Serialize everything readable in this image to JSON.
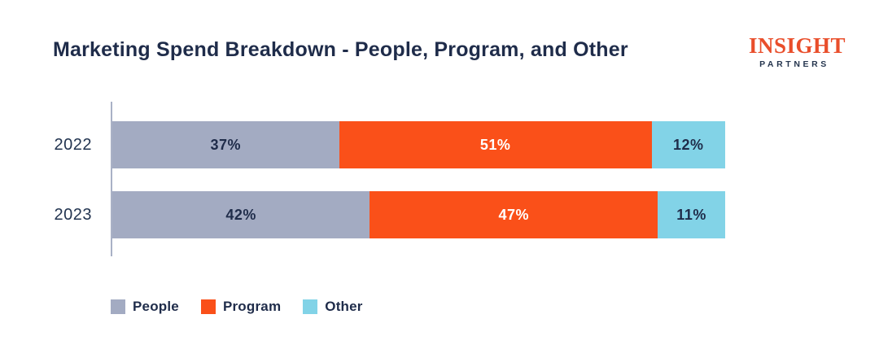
{
  "title": "Marketing Spend Breakdown - People, Program, and Other",
  "logo": {
    "line1": "INSIGHT",
    "line2": "PARTNERS",
    "line1_color": "#E94E2B",
    "line2_color": "#26364F"
  },
  "colors": {
    "title_text": "#1F2C4A",
    "axis_line": "#A9B1C6",
    "people": "#A3ABC2",
    "program": "#FA5019",
    "other": "#82D3E7",
    "label_on_light": "#1F2C4A",
    "label_on_orange": "#FFFFFF"
  },
  "chart_data": {
    "type": "bar",
    "orientation": "horizontal",
    "stacked": true,
    "title": "Marketing Spend Breakdown - People, Program, and Other",
    "categories": [
      "2022",
      "2023"
    ],
    "series": [
      {
        "name": "People",
        "values": [
          37,
          42
        ],
        "color": "#A3ABC2",
        "label_color": "#1F2C4A"
      },
      {
        "name": "Program",
        "values": [
          51,
          47
        ],
        "color": "#FA5019",
        "label_color": "#FFFFFF"
      },
      {
        "name": "Other",
        "values": [
          12,
          11
        ],
        "color": "#82D3E7",
        "label_color": "#1F2C4A"
      }
    ],
    "value_suffix": "%",
    "xlim": [
      0,
      100
    ],
    "xlabel": "",
    "ylabel": "",
    "grid": false,
    "legend_position": "bottom-left"
  }
}
